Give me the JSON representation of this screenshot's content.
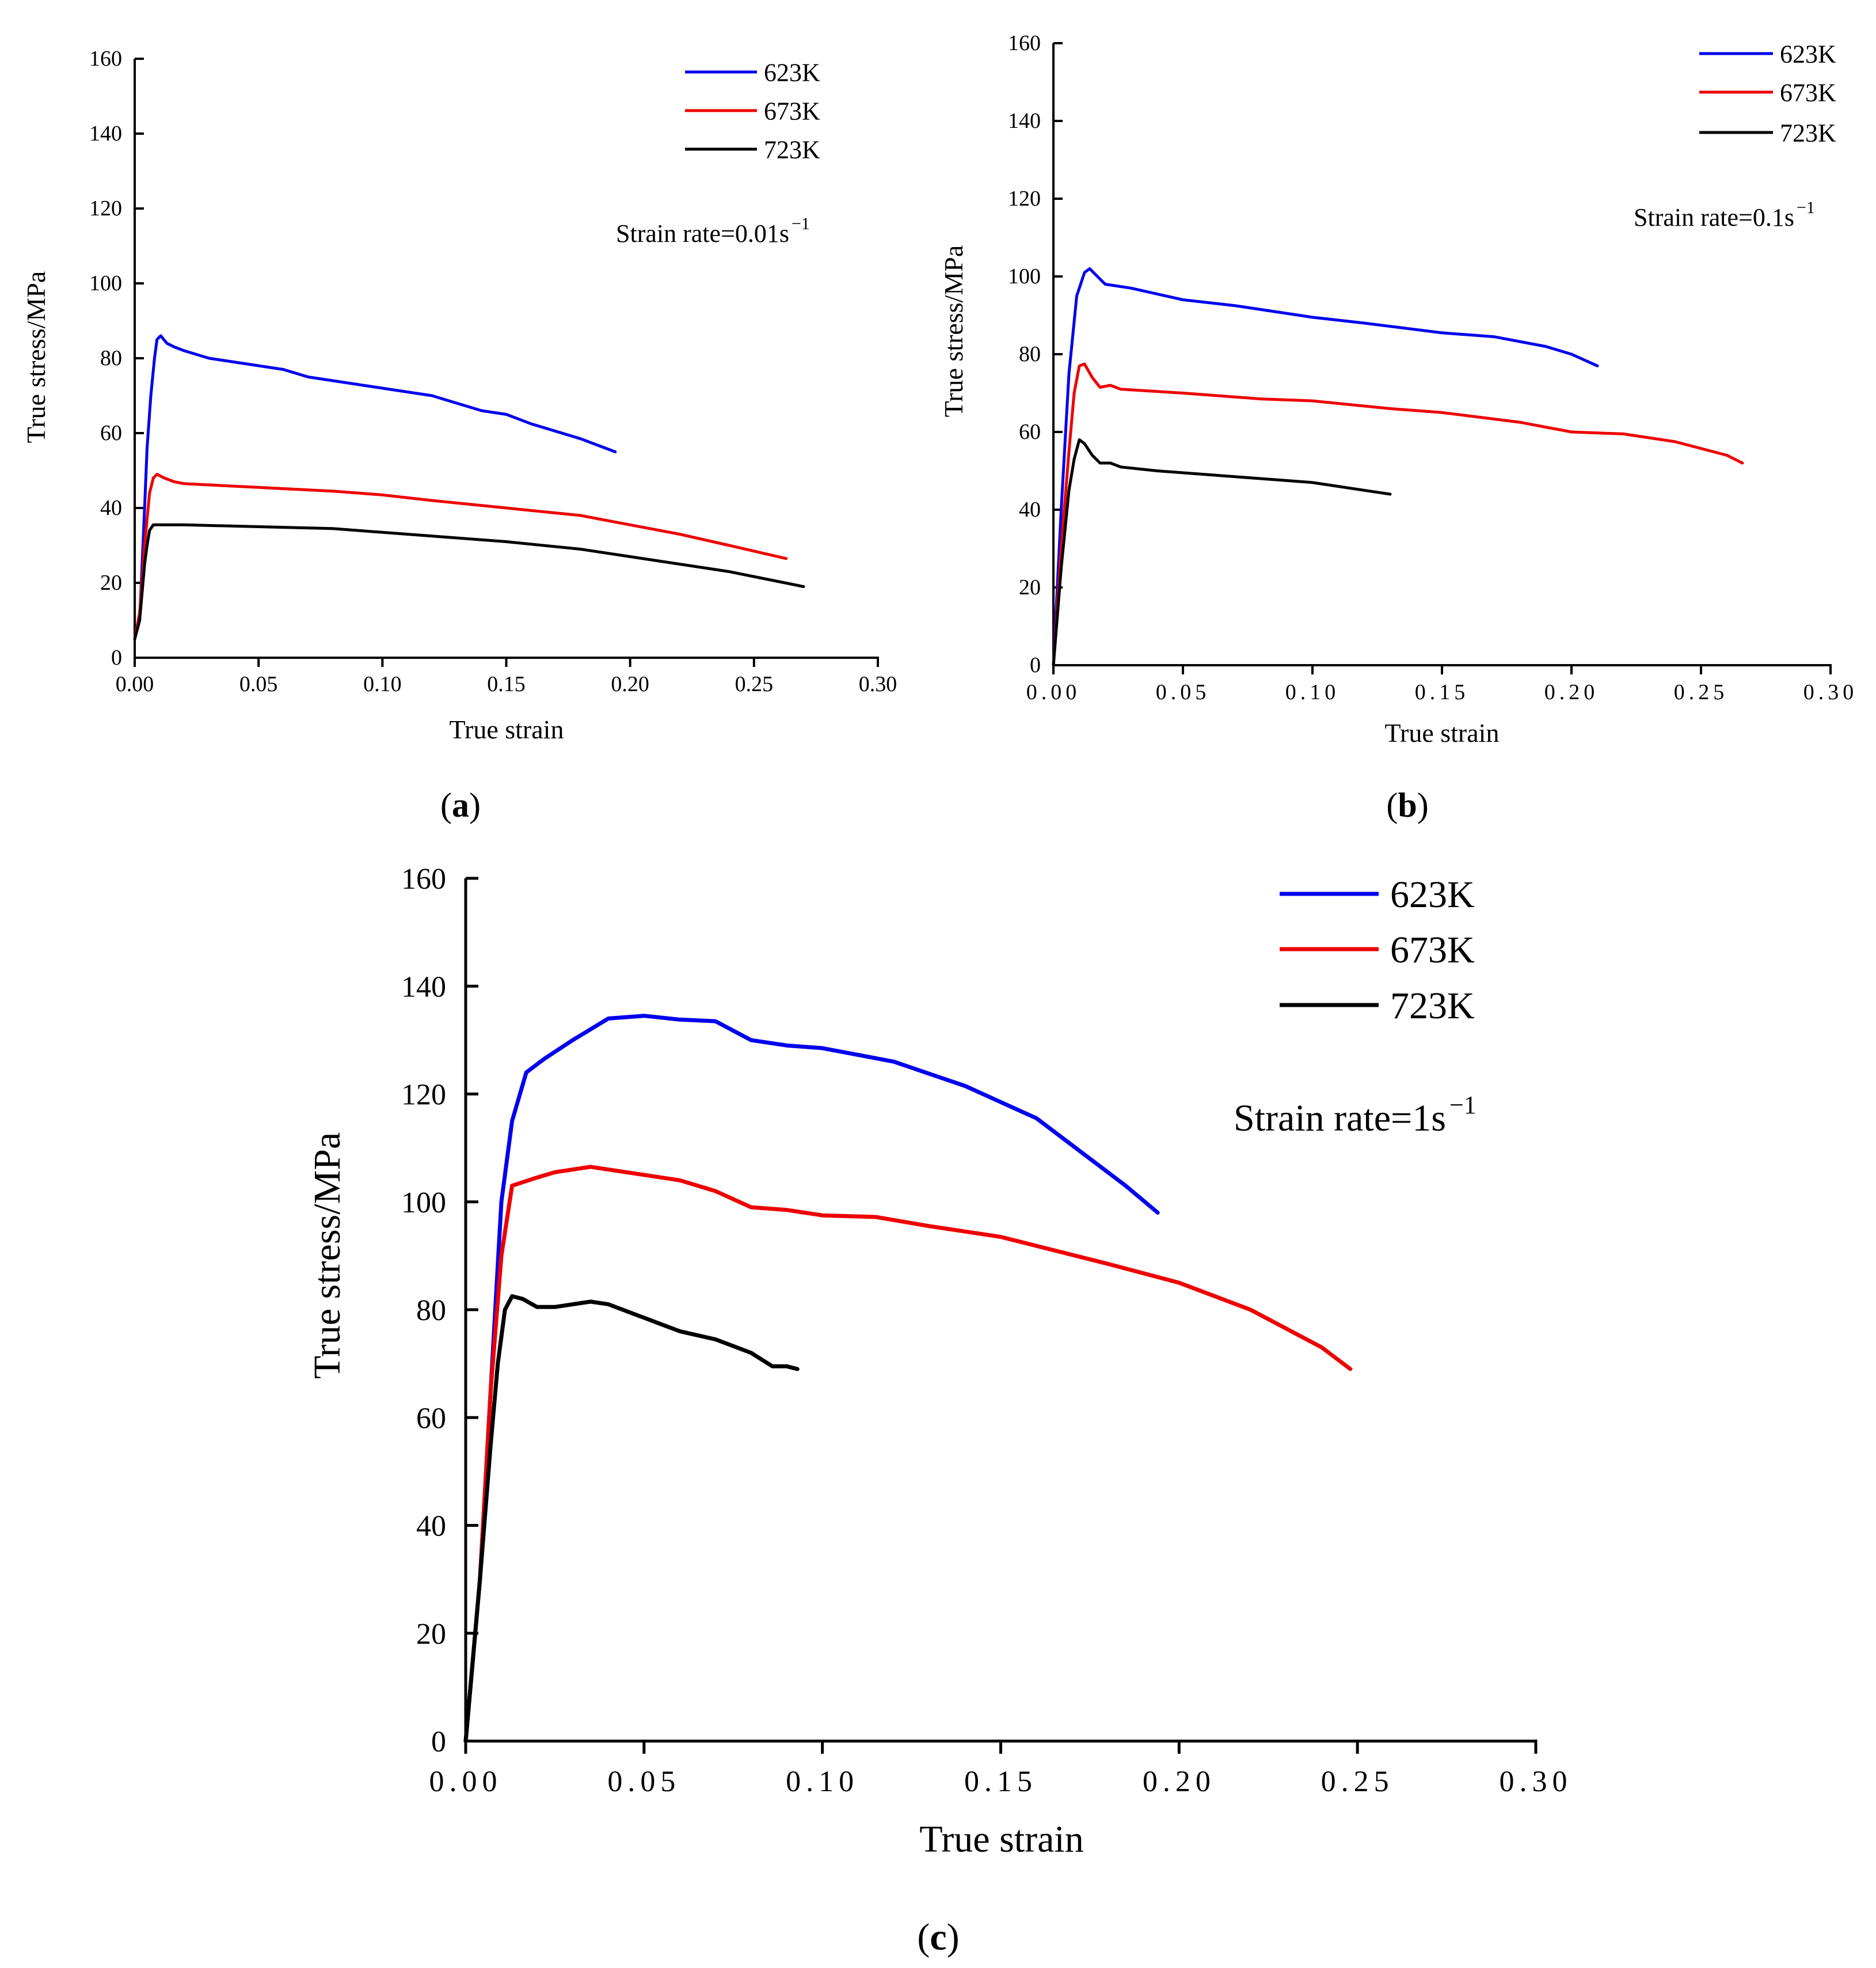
{
  "chart_data": [
    {
      "id": "a",
      "type": "line",
      "panel_label": "a",
      "xlabel": "True strain",
      "ylabel": "True stress/MPa",
      "annotation": {
        "text": "Strain rate=0.01s",
        "superscript": "−1"
      },
      "xlim": [
        0,
        0.3
      ],
      "ylim": [
        0,
        160
      ],
      "xticks": [
        0,
        0.05,
        0.1,
        0.15,
        0.2,
        0.25,
        0.3
      ],
      "xtick_labels": [
        "0.00",
        "0.05",
        "0.10",
        "0.15",
        "0.20",
        "0.25",
        "0.30"
      ],
      "yticks": [
        0,
        20,
        40,
        60,
        80,
        100,
        120,
        140,
        160
      ],
      "ytick_labels": [
        "0",
        "20",
        "40",
        "60",
        "80",
        "100",
        "120",
        "140",
        "160"
      ],
      "series": [
        {
          "name": "623K",
          "color": "#0000ee",
          "points": [
            [
              0,
              5
            ],
            [
              0.002,
              10
            ],
            [
              0.004,
              40
            ],
            [
              0.005,
              56
            ],
            [
              0.0065,
              70
            ],
            [
              0.008,
              80
            ],
            [
              0.009,
              85
            ],
            [
              0.0105,
              86
            ],
            [
              0.013,
              84
            ],
            [
              0.016,
              83
            ],
            [
              0.02,
              82
            ],
            [
              0.03,
              80
            ],
            [
              0.04,
              79
            ],
            [
              0.05,
              78
            ],
            [
              0.06,
              77
            ],
            [
              0.07,
              75
            ],
            [
              0.08,
              74
            ],
            [
              0.09,
              73
            ],
            [
              0.1,
              72
            ],
            [
              0.11,
              71
            ],
            [
              0.12,
              70
            ],
            [
              0.13,
              68
            ],
            [
              0.14,
              66
            ],
            [
              0.15,
              65
            ],
            [
              0.16,
              62.5
            ],
            [
              0.17,
              60.5
            ],
            [
              0.18,
              58.5
            ],
            [
              0.19,
              56
            ],
            [
              0.194,
              55
            ]
          ]
        },
        {
          "name": "673K",
          "color": "#ee0000",
          "points": [
            [
              0,
              5
            ],
            [
              0.002,
              12
            ],
            [
              0.004,
              30
            ],
            [
              0.006,
              44
            ],
            [
              0.0075,
              48
            ],
            [
              0.009,
              49
            ],
            [
              0.012,
              48
            ],
            [
              0.016,
              47
            ],
            [
              0.02,
              46.5
            ],
            [
              0.05,
              45.5
            ],
            [
              0.08,
              44.5
            ],
            [
              0.1,
              43.5
            ],
            [
              0.12,
              42
            ],
            [
              0.15,
              40
            ],
            [
              0.18,
              38
            ],
            [
              0.2,
              35.5
            ],
            [
              0.22,
              33
            ],
            [
              0.24,
              30
            ],
            [
              0.263,
              26.5
            ]
          ]
        },
        {
          "name": "723K",
          "color": "#000000",
          "points": [
            [
              0,
              5
            ],
            [
              0.002,
              10
            ],
            [
              0.004,
              25
            ],
            [
              0.005,
              30
            ],
            [
              0.006,
              34
            ],
            [
              0.0075,
              35.5
            ],
            [
              0.02,
              35.5
            ],
            [
              0.05,
              35
            ],
            [
              0.08,
              34.5
            ],
            [
              0.1,
              33.5
            ],
            [
              0.12,
              32.5
            ],
            [
              0.15,
              31
            ],
            [
              0.18,
              29
            ],
            [
              0.2,
              27
            ],
            [
              0.22,
              25
            ],
            [
              0.24,
              23
            ],
            [
              0.255,
              21
            ],
            [
              0.27,
              19
            ]
          ]
        }
      ],
      "legend_labels": [
        "623K",
        "673K",
        "723K"
      ]
    },
    {
      "id": "b",
      "type": "line",
      "panel_label": "b",
      "xlabel": "True strain",
      "ylabel": "True stress/MPa",
      "annotation": {
        "text": "Strain rate=0.1s",
        "superscript": "−1"
      },
      "xlim": [
        0,
        0.3
      ],
      "ylim": [
        0,
        160
      ],
      "xticks": [
        0,
        0.05,
        0.1,
        0.15,
        0.2,
        0.25,
        0.3
      ],
      "xtick_labels": [
        "0.00",
        "0.05",
        "0.10",
        "0.15",
        "0.20",
        "0.25",
        "0.30"
      ],
      "yticks": [
        0,
        20,
        40,
        60,
        80,
        100,
        120,
        140,
        160
      ],
      "ytick_labels": [
        "0",
        "20",
        "40",
        "60",
        "80",
        "100",
        "120",
        "140",
        "160"
      ],
      "series": [
        {
          "name": "623K",
          "color": "#0000ee",
          "points": [
            [
              0,
              0
            ],
            [
              0.003,
              40
            ],
            [
              0.006,
              75
            ],
            [
              0.009,
              95
            ],
            [
              0.012,
              101
            ],
            [
              0.014,
              102
            ],
            [
              0.017,
              100
            ],
            [
              0.02,
              98
            ],
            [
              0.025,
              97.5
            ],
            [
              0.03,
              97
            ],
            [
              0.05,
              94
            ],
            [
              0.07,
              92.5
            ],
            [
              0.1,
              89.5
            ],
            [
              0.12,
              88
            ],
            [
              0.15,
              85.5
            ],
            [
              0.17,
              84.5
            ],
            [
              0.19,
              82
            ],
            [
              0.2,
              80
            ],
            [
              0.21,
              77
            ]
          ]
        },
        {
          "name": "673K",
          "color": "#ee0000",
          "points": [
            [
              0,
              0
            ],
            [
              0.003,
              30
            ],
            [
              0.006,
              55
            ],
            [
              0.008,
              70
            ],
            [
              0.01,
              77
            ],
            [
              0.012,
              77.5
            ],
            [
              0.015,
              74
            ],
            [
              0.018,
              71.5
            ],
            [
              0.022,
              72
            ],
            [
              0.026,
              71
            ],
            [
              0.05,
              70
            ],
            [
              0.08,
              68.5
            ],
            [
              0.1,
              68
            ],
            [
              0.13,
              66
            ],
            [
              0.15,
              65
            ],
            [
              0.18,
              62.5
            ],
            [
              0.2,
              60
            ],
            [
              0.22,
              59.5
            ],
            [
              0.24,
              57.5
            ],
            [
              0.26,
              54
            ],
            [
              0.266,
              52
            ]
          ]
        },
        {
          "name": "723K",
          "color": "#000000",
          "points": [
            [
              0,
              0
            ],
            [
              0.003,
              25
            ],
            [
              0.006,
              45
            ],
            [
              0.008,
              53
            ],
            [
              0.01,
              58
            ],
            [
              0.012,
              57
            ],
            [
              0.015,
              54
            ],
            [
              0.018,
              52
            ],
            [
              0.022,
              52
            ],
            [
              0.026,
              51
            ],
            [
              0.04,
              50
            ],
            [
              0.06,
              49
            ],
            [
              0.08,
              48
            ],
            [
              0.1,
              47
            ],
            [
              0.12,
              45
            ],
            [
              0.13,
              44
            ]
          ]
        }
      ],
      "legend_labels": [
        "623K",
        "673K",
        "723K"
      ]
    },
    {
      "id": "c",
      "type": "line",
      "panel_label": "c",
      "xlabel": "True strain",
      "ylabel": "True stress/MPa",
      "annotation": {
        "text": "Strain rate=1s",
        "superscript": "−1"
      },
      "xlim": [
        0,
        0.3
      ],
      "ylim": [
        0,
        160
      ],
      "xticks": [
        0,
        0.05,
        0.1,
        0.15,
        0.2,
        0.25,
        0.3
      ],
      "xtick_labels": [
        "0.00",
        "0.05",
        "0.10",
        "0.15",
        "0.20",
        "0.25",
        "0.30"
      ],
      "yticks": [
        0,
        20,
        40,
        60,
        80,
        100,
        120,
        140,
        160
      ],
      "ytick_labels": [
        "0",
        "20",
        "40",
        "60",
        "80",
        "100",
        "120",
        "140",
        "160"
      ],
      "series": [
        {
          "name": "623K",
          "color": "#0000ee",
          "points": [
            [
              0,
              0
            ],
            [
              0.004,
              30
            ],
            [
              0.007,
              65
            ],
            [
              0.01,
              100
            ],
            [
              0.013,
              115
            ],
            [
              0.017,
              124
            ],
            [
              0.022,
              126.5
            ],
            [
              0.03,
              130
            ],
            [
              0.04,
              134
            ],
            [
              0.05,
              134.5
            ],
            [
              0.06,
              133.8
            ],
            [
              0.07,
              133.5
            ],
            [
              0.08,
              130
            ],
            [
              0.09,
              129
            ],
            [
              0.1,
              128.5
            ],
            [
              0.12,
              126
            ],
            [
              0.14,
              121.5
            ],
            [
              0.16,
              115.5
            ],
            [
              0.175,
              108
            ],
            [
              0.185,
              103
            ],
            [
              0.194,
              98
            ]
          ]
        },
        {
          "name": "673K",
          "color": "#ee0000",
          "points": [
            [
              0,
              0
            ],
            [
              0.004,
              30
            ],
            [
              0.007,
              65
            ],
            [
              0.01,
              90
            ],
            [
              0.013,
              103
            ],
            [
              0.02,
              104.5
            ],
            [
              0.025,
              105.5
            ],
            [
              0.035,
              106.5
            ],
            [
              0.045,
              105.5
            ],
            [
              0.06,
              104
            ],
            [
              0.07,
              102
            ],
            [
              0.08,
              99
            ],
            [
              0.09,
              98.5
            ],
            [
              0.1,
              97.5
            ],
            [
              0.115,
              97.2
            ],
            [
              0.13,
              95.5
            ],
            [
              0.15,
              93.5
            ],
            [
              0.18,
              88.5
            ],
            [
              0.2,
              85
            ],
            [
              0.22,
              80
            ],
            [
              0.24,
              73
            ],
            [
              0.248,
              69
            ]
          ]
        },
        {
          "name": "723K",
          "color": "#000000",
          "points": [
            [
              0,
              0
            ],
            [
              0.004,
              30
            ],
            [
              0.007,
              55
            ],
            [
              0.009,
              70
            ],
            [
              0.011,
              80
            ],
            [
              0.013,
              82.5
            ],
            [
              0.016,
              82
            ],
            [
              0.02,
              80.5
            ],
            [
              0.025,
              80.5
            ],
            [
              0.035,
              81.5
            ],
            [
              0.04,
              81
            ],
            [
              0.05,
              78.5
            ],
            [
              0.06,
              76
            ],
            [
              0.07,
              74.5
            ],
            [
              0.08,
              72
            ],
            [
              0.086,
              69.5
            ],
            [
              0.09,
              69.5
            ],
            [
              0.093,
              69
            ]
          ]
        }
      ],
      "legend_labels": [
        "623K",
        "673K",
        "723K"
      ]
    }
  ]
}
